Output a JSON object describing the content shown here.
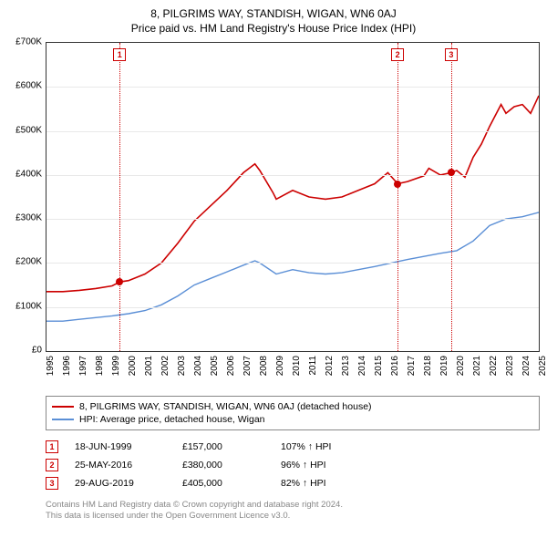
{
  "title": "8, PILGRIMS WAY, STANDISH, WIGAN, WN6 0AJ",
  "subtitle": "Price paid vs. HM Land Registry's House Price Index (HPI)",
  "chart": {
    "type": "line",
    "background_color": "#ffffff",
    "grid_color": "#e8e8e8",
    "border_color": "#333333",
    "ylim": [
      0,
      700000
    ],
    "ytick_step": 100000,
    "ytick_labels": [
      "£0",
      "£100K",
      "£200K",
      "£300K",
      "£400K",
      "£500K",
      "£600K",
      "£700K"
    ],
    "xlim": [
      1995,
      2025
    ],
    "xticks": [
      1995,
      1996,
      1997,
      1998,
      1999,
      2000,
      2001,
      2002,
      2003,
      2004,
      2005,
      2006,
      2007,
      2008,
      2009,
      2010,
      2011,
      2012,
      2013,
      2014,
      2015,
      2016,
      2017,
      2018,
      2019,
      2020,
      2021,
      2022,
      2023,
      2024,
      2025
    ],
    "series": [
      {
        "name": "8, PILGRIMS WAY, STANDISH, WIGAN, WN6 0AJ (detached house)",
        "color": "#cc0000",
        "width": 1.6,
        "points": [
          [
            1995,
            135000
          ],
          [
            1996,
            135000
          ],
          [
            1997,
            138000
          ],
          [
            1998,
            142000
          ],
          [
            1999,
            148000
          ],
          [
            1999.46,
            157000
          ],
          [
            2000,
            160000
          ],
          [
            2001,
            175000
          ],
          [
            2002,
            200000
          ],
          [
            2003,
            245000
          ],
          [
            2004,
            295000
          ],
          [
            2005,
            330000
          ],
          [
            2006,
            365000
          ],
          [
            2007,
            405000
          ],
          [
            2007.7,
            425000
          ],
          [
            2008,
            410000
          ],
          [
            2008.8,
            360000
          ],
          [
            2009,
            345000
          ],
          [
            2010,
            365000
          ],
          [
            2011,
            350000
          ],
          [
            2012,
            345000
          ],
          [
            2013,
            350000
          ],
          [
            2014,
            365000
          ],
          [
            2015,
            380000
          ],
          [
            2015.8,
            405000
          ],
          [
            2016.4,
            380000
          ],
          [
            2017,
            385000
          ],
          [
            2018,
            398000
          ],
          [
            2018.3,
            415000
          ],
          [
            2019,
            400000
          ],
          [
            2019.66,
            405000
          ],
          [
            2020,
            410000
          ],
          [
            2020.5,
            395000
          ],
          [
            2021,
            440000
          ],
          [
            2021.5,
            470000
          ],
          [
            2022,
            510000
          ],
          [
            2022.7,
            560000
          ],
          [
            2023,
            540000
          ],
          [
            2023.5,
            555000
          ],
          [
            2024,
            560000
          ],
          [
            2024.5,
            540000
          ],
          [
            2025,
            580000
          ]
        ]
      },
      {
        "name": "HPI: Average price, detached house, Wigan",
        "color": "#5b8fd6",
        "width": 1.4,
        "points": [
          [
            1995,
            68000
          ],
          [
            1996,
            68000
          ],
          [
            1997,
            72000
          ],
          [
            1998,
            76000
          ],
          [
            1999,
            80000
          ],
          [
            2000,
            85000
          ],
          [
            2001,
            92000
          ],
          [
            2002,
            105000
          ],
          [
            2003,
            125000
          ],
          [
            2004,
            150000
          ],
          [
            2005,
            165000
          ],
          [
            2006,
            180000
          ],
          [
            2007,
            195000
          ],
          [
            2007.7,
            205000
          ],
          [
            2008,
            200000
          ],
          [
            2009,
            175000
          ],
          [
            2010,
            185000
          ],
          [
            2011,
            178000
          ],
          [
            2012,
            175000
          ],
          [
            2013,
            178000
          ],
          [
            2014,
            185000
          ],
          [
            2015,
            192000
          ],
          [
            2016,
            200000
          ],
          [
            2017,
            208000
          ],
          [
            2018,
            215000
          ],
          [
            2019,
            222000
          ],
          [
            2020,
            228000
          ],
          [
            2021,
            250000
          ],
          [
            2022,
            285000
          ],
          [
            2023,
            300000
          ],
          [
            2024,
            305000
          ],
          [
            2025,
            315000
          ]
        ]
      }
    ],
    "vlines": [
      {
        "x": 1999.46,
        "color": "#cc0000"
      },
      {
        "x": 2016.4,
        "color": "#cc0000"
      },
      {
        "x": 2019.66,
        "color": "#cc0000"
      }
    ],
    "markers_top": [
      {
        "label": "1",
        "x": 1999.46
      },
      {
        "label": "2",
        "x": 2016.4
      },
      {
        "label": "3",
        "x": 2019.66
      }
    ],
    "event_points": [
      {
        "x": 1999.46,
        "y": 157000,
        "color": "#cc0000"
      },
      {
        "x": 2016.4,
        "y": 380000,
        "color": "#cc0000"
      },
      {
        "x": 2019.66,
        "y": 405000,
        "color": "#cc0000"
      }
    ]
  },
  "legend": {
    "items": [
      {
        "color": "#cc0000",
        "label": "8, PILGRIMS WAY, STANDISH, WIGAN, WN6 0AJ (detached house)"
      },
      {
        "color": "#5b8fd6",
        "label": "HPI: Average price, detached house, Wigan"
      }
    ]
  },
  "events": [
    {
      "num": "1",
      "date": "18-JUN-1999",
      "price": "£157,000",
      "pct": "107% ↑ HPI"
    },
    {
      "num": "2",
      "date": "25-MAY-2016",
      "price": "£380,000",
      "pct": "96% ↑ HPI"
    },
    {
      "num": "3",
      "date": "29-AUG-2019",
      "price": "£405,000",
      "pct": "82% ↑ HPI"
    }
  ],
  "footer": {
    "line1": "Contains HM Land Registry data © Crown copyright and database right 2024.",
    "line2": "This data is licensed under the Open Government Licence v3.0."
  }
}
